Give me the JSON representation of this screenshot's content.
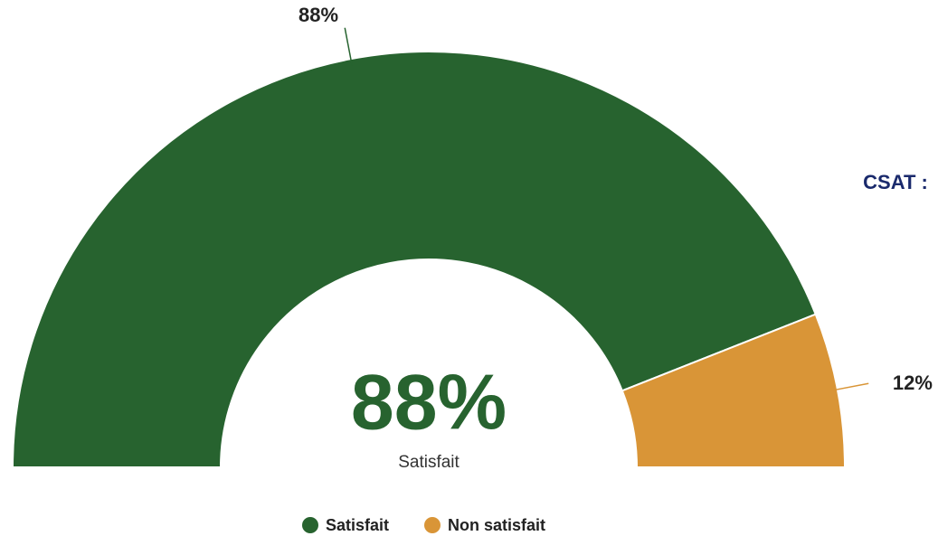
{
  "chart_data": {
    "type": "donut",
    "half": true,
    "categories": [
      "Satisfait",
      "Non satisfait"
    ],
    "values": [
      88,
      12
    ],
    "value_labels": [
      "88%",
      "12%"
    ],
    "colors": [
      "#27632f",
      "#d99537"
    ],
    "center_text": "88%",
    "center_subtext": "Satisfait",
    "side_label": "CSAT :",
    "legend": "bottom"
  }
}
